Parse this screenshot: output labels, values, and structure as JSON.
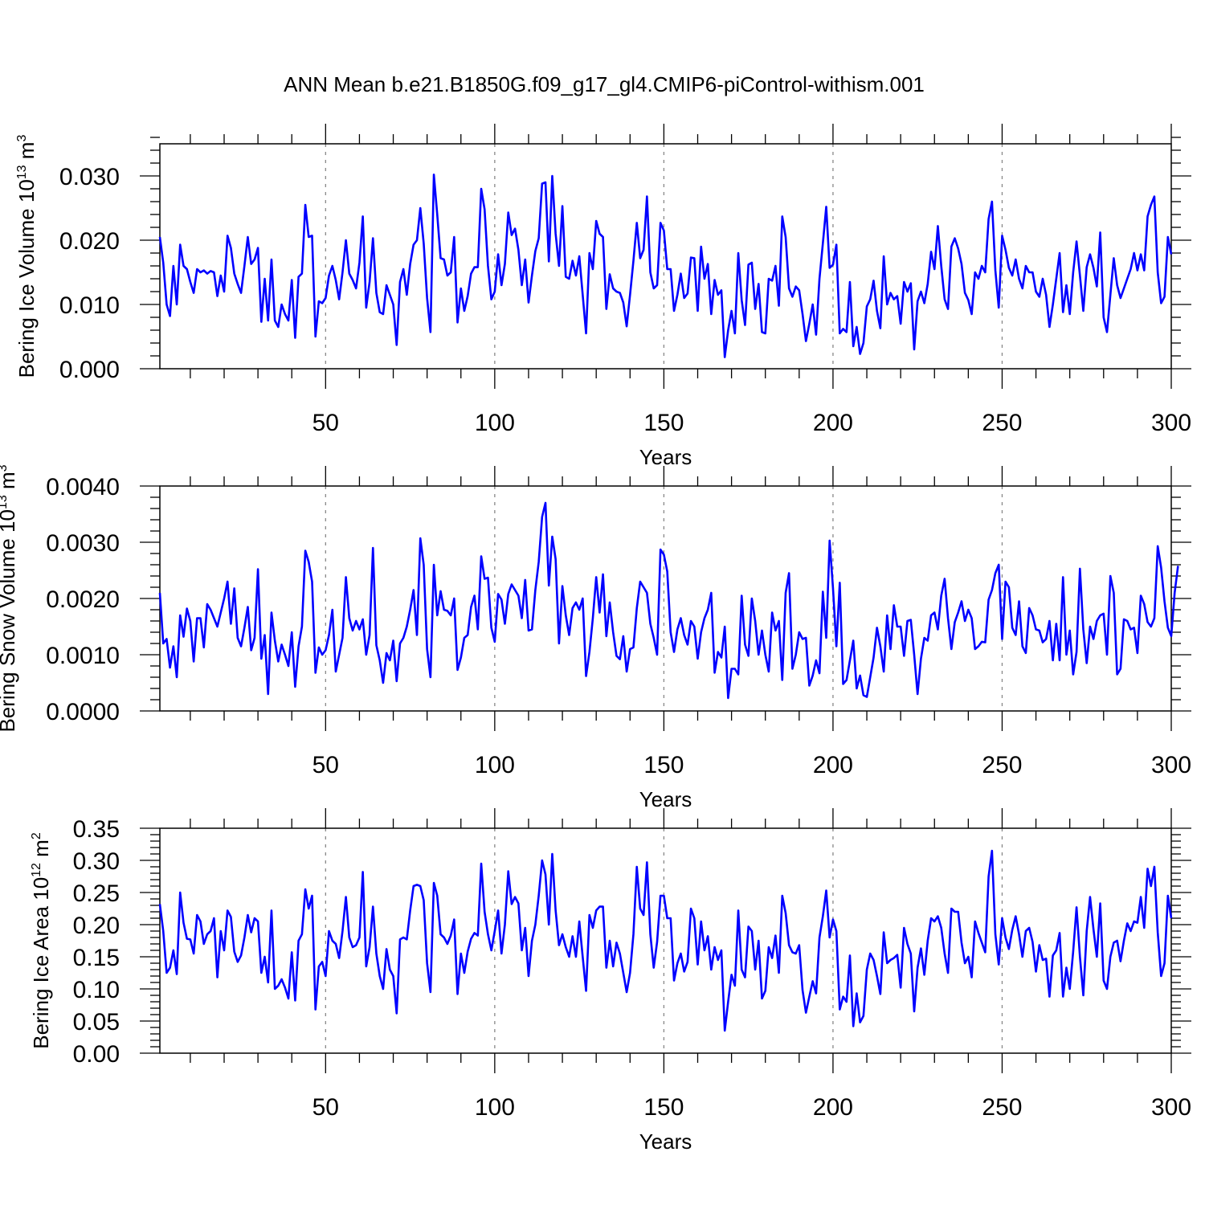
{
  "title": "ANN Mean b.e21.B1850G.f09_g17_gl4.CMIP6-piControl-withism.001",
  "chart_data": [
    {
      "type": "line",
      "id": "ice-volume",
      "ylabel": "Bering Ice Volume",
      "yunit_base": "10",
      "yunit_exp": "13",
      "yunit_tail": "m",
      "yunit_tail_exp": "3",
      "xlabel": "Years",
      "xlim": [
        1,
        300
      ],
      "ylim": [
        0,
        0.035
      ],
      "yticks": [
        0.0,
        0.01,
        0.02,
        0.03
      ],
      "ytick_labels": [
        "0.000",
        "0.010",
        "0.020",
        "0.030"
      ],
      "xticks": [
        50,
        100,
        150,
        200,
        250,
        300
      ],
      "xtick_labels": [
        "50",
        "100",
        "150",
        "200",
        "250",
        "300"
      ],
      "vgrid": [
        50,
        100,
        150,
        200,
        250
      ],
      "color": "#0000ff",
      "values": [
        0.0205,
        0.0165,
        0.01,
        0.0082,
        0.016,
        0.01,
        0.0193,
        0.016,
        0.0155,
        0.0135,
        0.0118,
        0.0155,
        0.015,
        0.0153,
        0.0148,
        0.0152,
        0.015,
        0.0113,
        0.0145,
        0.012,
        0.0207,
        0.0188,
        0.0148,
        0.0132,
        0.0118,
        0.016,
        0.0205,
        0.0163,
        0.017,
        0.0188,
        0.0073,
        0.014,
        0.0075,
        0.017,
        0.0075,
        0.0065,
        0.01,
        0.0085,
        0.0075,
        0.0138,
        0.0048,
        0.0143,
        0.0148,
        0.0255,
        0.0205,
        0.0207,
        0.005,
        0.0105,
        0.0102,
        0.011,
        0.0145,
        0.016,
        0.0138,
        0.0108,
        0.015,
        0.02,
        0.0148,
        0.0138,
        0.0125,
        0.0165,
        0.0237,
        0.0095,
        0.0135,
        0.0203,
        0.0118,
        0.0088,
        0.0085,
        0.013,
        0.0115,
        0.01,
        0.0037,
        0.0135,
        0.0155,
        0.0115,
        0.0163,
        0.0193,
        0.02,
        0.025,
        0.0195,
        0.011,
        0.0057,
        0.0302,
        0.024,
        0.0172,
        0.017,
        0.0145,
        0.015,
        0.0205,
        0.0072,
        0.0125,
        0.009,
        0.0113,
        0.0148,
        0.0158,
        0.0158,
        0.028,
        0.0248,
        0.016,
        0.0108,
        0.012,
        0.0178,
        0.013,
        0.0163,
        0.0243,
        0.0208,
        0.0218,
        0.0185,
        0.013,
        0.017,
        0.0103,
        0.0145,
        0.0183,
        0.0203,
        0.0288,
        0.029,
        0.0167,
        0.03,
        0.021,
        0.016,
        0.0253,
        0.0143,
        0.014,
        0.0168,
        0.0145,
        0.0175,
        0.0115,
        0.0055,
        0.018,
        0.0155,
        0.023,
        0.021,
        0.0205,
        0.0093,
        0.0147,
        0.0125,
        0.012,
        0.0118,
        0.0103,
        0.0066,
        0.0115,
        0.0168,
        0.0227,
        0.0172,
        0.0185,
        0.0268,
        0.015,
        0.0125,
        0.013,
        0.0227,
        0.0215,
        0.0155,
        0.0155,
        0.009,
        0.0115,
        0.0148,
        0.011,
        0.0117,
        0.0173,
        0.0172,
        0.009,
        0.019,
        0.014,
        0.0163,
        0.0085,
        0.0138,
        0.0115,
        0.0122,
        0.0018,
        0.006,
        0.009,
        0.0055,
        0.018,
        0.0107,
        0.0068,
        0.0162,
        0.0165,
        0.0093,
        0.0132,
        0.0057,
        0.0055,
        0.014,
        0.0137,
        0.016,
        0.0098,
        0.0237,
        0.0205,
        0.0125,
        0.0112,
        0.0128,
        0.0122,
        0.0085,
        0.0043,
        0.007,
        0.01,
        0.0053,
        0.014,
        0.0195,
        0.0252,
        0.0157,
        0.0162,
        0.0193,
        0.0055,
        0.0062,
        0.0057,
        0.0135,
        0.0035,
        0.0065,
        0.0023,
        0.004,
        0.0097,
        0.0108,
        0.0137,
        0.009,
        0.0063,
        0.0175,
        0.01,
        0.0118,
        0.0108,
        0.0113,
        0.007,
        0.0135,
        0.012,
        0.0133,
        0.003,
        0.0105,
        0.012,
        0.0102,
        0.0132,
        0.0182,
        0.0155,
        0.0222,
        0.016,
        0.0108,
        0.0093,
        0.019,
        0.0203,
        0.0187,
        0.0163,
        0.0118,
        0.0107,
        0.0085,
        0.015,
        0.014,
        0.016,
        0.015,
        0.0233,
        0.026,
        0.0153,
        0.0095,
        0.0207,
        0.0185,
        0.0157,
        0.0145,
        0.017,
        0.014,
        0.0125,
        0.016,
        0.015,
        0.015,
        0.012,
        0.0112,
        0.014,
        0.0115,
        0.0065,
        0.01,
        0.014,
        0.018,
        0.0088,
        0.013,
        0.0085,
        0.015,
        0.0198,
        0.0145,
        0.009,
        0.0158,
        0.0178,
        0.0157,
        0.0128,
        0.0212,
        0.008,
        0.0057,
        0.0115,
        0.0172,
        0.013,
        0.011,
        0.0125,
        0.014,
        0.0155,
        0.018,
        0.0153,
        0.0178,
        0.0153,
        0.0237,
        0.0255,
        0.0268,
        0.015,
        0.0102,
        0.0112,
        0.0205,
        0.0178
      ]
    },
    {
      "type": "line",
      "id": "snow-volume",
      "ylabel": "Bering Snow Volume",
      "yunit_base": "10",
      "yunit_exp": "13",
      "yunit_tail": "m",
      "yunit_tail_exp": "3",
      "xlabel": "Years",
      "xlim": [
        1,
        300
      ],
      "ylim": [
        0,
        0.004
      ],
      "yticks": [
        0.0,
        0.001,
        0.002,
        0.003,
        0.004
      ],
      "ytick_labels": [
        "0.0000",
        "0.0010",
        "0.0020",
        "0.0030",
        "0.0040"
      ],
      "xticks": [
        50,
        100,
        150,
        200,
        250,
        300
      ],
      "xtick_labels": [
        "50",
        "100",
        "150",
        "200",
        "250",
        "300"
      ],
      "vgrid": [
        50,
        100,
        150,
        200,
        250
      ],
      "color": "#0000ff",
      "values": [
        0.0021,
        0.0012,
        0.00128,
        0.00077,
        0.00115,
        0.0006,
        0.0017,
        0.00132,
        0.00182,
        0.0016,
        0.00088,
        0.00165,
        0.00165,
        0.00113,
        0.0019,
        0.0018,
        0.00165,
        0.0015,
        0.00175,
        0.002,
        0.0023,
        0.00155,
        0.00218,
        0.0013,
        0.00115,
        0.00148,
        0.00185,
        0.00108,
        0.0013,
        0.00252,
        0.00093,
        0.00135,
        0.0003,
        0.00175,
        0.00125,
        0.00088,
        0.00118,
        0.001,
        0.0008,
        0.0014,
        0.00043,
        0.00115,
        0.0015,
        0.00285,
        0.00265,
        0.0023,
        0.00068,
        0.00113,
        0.001,
        0.00108,
        0.00135,
        0.0018,
        0.0007,
        0.001,
        0.0013,
        0.00238,
        0.00165,
        0.00143,
        0.0016,
        0.00145,
        0.00163,
        0.001,
        0.00135,
        0.0029,
        0.00117,
        0.0009,
        0.0005,
        0.00103,
        0.0009,
        0.00125,
        0.00053,
        0.0012,
        0.0013,
        0.0015,
        0.0018,
        0.00215,
        0.00135,
        0.00307,
        0.0026,
        0.0011,
        0.0006,
        0.0026,
        0.0017,
        0.00213,
        0.0018,
        0.00178,
        0.0017,
        0.002,
        0.00073,
        0.00095,
        0.0013,
        0.00135,
        0.00185,
        0.00205,
        0.00145,
        0.00275,
        0.00235,
        0.00237,
        0.00148,
        0.00123,
        0.00208,
        0.00198,
        0.00155,
        0.00208,
        0.00225,
        0.00215,
        0.00205,
        0.00165,
        0.00233,
        0.00143,
        0.00145,
        0.00215,
        0.00265,
        0.00345,
        0.0037,
        0.00223,
        0.0031,
        0.0027,
        0.0012,
        0.00222,
        0.0017,
        0.00135,
        0.00183,
        0.00193,
        0.0018,
        0.002,
        0.00062,
        0.00105,
        0.00165,
        0.00238,
        0.00175,
        0.00243,
        0.00133,
        0.00193,
        0.0014,
        0.00098,
        0.00092,
        0.00133,
        0.0007,
        0.0011,
        0.00113,
        0.00183,
        0.0023,
        0.0022,
        0.0021,
        0.00155,
        0.0013,
        0.001,
        0.00287,
        0.00278,
        0.00248,
        0.0014,
        0.00105,
        0.00145,
        0.00165,
        0.00135,
        0.00118,
        0.0016,
        0.0015,
        0.00093,
        0.0014,
        0.00165,
        0.0018,
        0.0021,
        0.00068,
        0.00105,
        0.00095,
        0.0015,
        0.00023,
        0.00075,
        0.00075,
        0.00065,
        0.00205,
        0.00118,
        0.00098,
        0.002,
        0.0016,
        0.001,
        0.00143,
        0.001,
        0.0007,
        0.00175,
        0.00143,
        0.0016,
        0.00055,
        0.0021,
        0.00245,
        0.00075,
        0.001,
        0.0014,
        0.00128,
        0.0013,
        0.00045,
        0.00063,
        0.0009,
        0.00067,
        0.00212,
        0.0013,
        0.00303,
        0.00218,
        0.00115,
        0.00228,
        0.00048,
        0.00055,
        0.0009,
        0.00125,
        0.0004,
        0.00063,
        0.00028,
        0.00025,
        0.0006,
        0.00095,
        0.00148,
        0.00115,
        0.0007,
        0.0017,
        0.0011,
        0.00188,
        0.0015,
        0.0015,
        0.00098,
        0.0016,
        0.00162,
        0.001,
        0.0003,
        0.00093,
        0.0013,
        0.00125,
        0.0017,
        0.00175,
        0.00145,
        0.00205,
        0.00235,
        0.00165,
        0.0011,
        0.00158,
        0.00175,
        0.00195,
        0.0016,
        0.0018,
        0.00165,
        0.0011,
        0.00115,
        0.00123,
        0.00122,
        0.00198,
        0.00215,
        0.00245,
        0.0026,
        0.00128,
        0.0023,
        0.0022,
        0.00148,
        0.00135,
        0.00195,
        0.00115,
        0.00103,
        0.00183,
        0.0017,
        0.00145,
        0.00143,
        0.00122,
        0.00128,
        0.0016,
        0.0009,
        0.00155,
        0.0009,
        0.00238,
        0.001,
        0.00143,
        0.00065,
        0.00105,
        0.00253,
        0.00145,
        0.00085,
        0.0015,
        0.00128,
        0.0016,
        0.0017,
        0.00173,
        0.001,
        0.0024,
        0.0021,
        0.00065,
        0.00075,
        0.00163,
        0.0016,
        0.00145,
        0.00148,
        0.00103,
        0.00205,
        0.0019,
        0.00158,
        0.0015,
        0.00165,
        0.00293,
        0.00255,
        0.00195,
        0.00148,
        0.00133,
        0.0021,
        0.00258
      ]
    },
    {
      "type": "line",
      "id": "ice-area",
      "ylabel": "Bering Ice Area",
      "yunit_base": "10",
      "yunit_exp": "12",
      "yunit_tail": "m",
      "yunit_tail_exp": "2",
      "xlabel": "Years",
      "xlim": [
        1,
        300
      ],
      "ylim": [
        0,
        0.35
      ],
      "yticks": [
        0.0,
        0.05,
        0.1,
        0.15,
        0.2,
        0.25,
        0.3,
        0.35
      ],
      "ytick_labels": [
        "0.00",
        "0.05",
        "0.10",
        "0.15",
        "0.20",
        "0.25",
        "0.30",
        "0.35"
      ],
      "xticks": [
        50,
        100,
        150,
        200,
        250,
        300
      ],
      "xtick_labels": [
        "50",
        "100",
        "150",
        "200",
        "250",
        "300"
      ],
      "vgrid": [
        50,
        100,
        150,
        200,
        250
      ],
      "color": "#0000ff",
      "values": [
        0.232,
        0.19,
        0.125,
        0.133,
        0.16,
        0.123,
        0.25,
        0.203,
        0.178,
        0.177,
        0.155,
        0.215,
        0.205,
        0.17,
        0.185,
        0.19,
        0.21,
        0.118,
        0.19,
        0.16,
        0.222,
        0.212,
        0.158,
        0.142,
        0.152,
        0.18,
        0.215,
        0.188,
        0.21,
        0.205,
        0.125,
        0.15,
        0.11,
        0.222,
        0.1,
        0.105,
        0.115,
        0.102,
        0.085,
        0.157,
        0.082,
        0.175,
        0.185,
        0.255,
        0.225,
        0.245,
        0.068,
        0.135,
        0.142,
        0.12,
        0.19,
        0.175,
        0.17,
        0.148,
        0.19,
        0.243,
        0.18,
        0.165,
        0.168,
        0.18,
        0.282,
        0.135,
        0.165,
        0.228,
        0.155,
        0.12,
        0.1,
        0.162,
        0.13,
        0.12,
        0.062,
        0.177,
        0.18,
        0.177,
        0.222,
        0.26,
        0.262,
        0.26,
        0.238,
        0.14,
        0.095,
        0.265,
        0.245,
        0.185,
        0.18,
        0.17,
        0.183,
        0.208,
        0.092,
        0.155,
        0.125,
        0.158,
        0.178,
        0.187,
        0.183,
        0.295,
        0.22,
        0.185,
        0.16,
        0.19,
        0.222,
        0.155,
        0.2,
        0.283,
        0.232,
        0.243,
        0.233,
        0.16,
        0.195,
        0.12,
        0.175,
        0.2,
        0.245,
        0.3,
        0.278,
        0.2,
        0.31,
        0.222,
        0.168,
        0.185,
        0.165,
        0.15,
        0.182,
        0.15,
        0.205,
        0.15,
        0.097,
        0.215,
        0.195,
        0.222,
        0.228,
        0.228,
        0.133,
        0.175,
        0.135,
        0.172,
        0.155,
        0.125,
        0.095,
        0.125,
        0.185,
        0.29,
        0.225,
        0.215,
        0.297,
        0.185,
        0.133,
        0.173,
        0.245,
        0.245,
        0.21,
        0.21,
        0.113,
        0.14,
        0.155,
        0.127,
        0.142,
        0.225,
        0.21,
        0.138,
        0.205,
        0.16,
        0.182,
        0.13,
        0.165,
        0.145,
        0.16,
        0.035,
        0.08,
        0.122,
        0.105,
        0.222,
        0.13,
        0.118,
        0.197,
        0.19,
        0.13,
        0.175,
        0.085,
        0.097,
        0.165,
        0.148,
        0.183,
        0.125,
        0.245,
        0.218,
        0.168,
        0.157,
        0.155,
        0.168,
        0.098,
        0.063,
        0.088,
        0.112,
        0.093,
        0.18,
        0.213,
        0.253,
        0.18,
        0.208,
        0.19,
        0.068,
        0.088,
        0.08,
        0.152,
        0.042,
        0.093,
        0.048,
        0.058,
        0.13,
        0.155,
        0.145,
        0.12,
        0.092,
        0.188,
        0.14,
        0.145,
        0.148,
        0.153,
        0.102,
        0.195,
        0.17,
        0.155,
        0.065,
        0.133,
        0.163,
        0.122,
        0.175,
        0.21,
        0.205,
        0.213,
        0.195,
        0.155,
        0.125,
        0.225,
        0.22,
        0.22,
        0.172,
        0.14,
        0.15,
        0.118,
        0.205,
        0.187,
        0.172,
        0.157,
        0.275,
        0.315,
        0.185,
        0.138,
        0.21,
        0.18,
        0.162,
        0.192,
        0.213,
        0.185,
        0.15,
        0.19,
        0.195,
        0.173,
        0.127,
        0.168,
        0.145,
        0.147,
        0.088,
        0.152,
        0.16,
        0.187,
        0.088,
        0.133,
        0.1,
        0.158,
        0.227,
        0.15,
        0.09,
        0.19,
        0.243,
        0.193,
        0.15,
        0.233,
        0.113,
        0.1,
        0.15,
        0.172,
        0.175,
        0.143,
        0.175,
        0.202,
        0.19,
        0.205,
        0.203,
        0.243,
        0.195,
        0.287,
        0.26,
        0.29,
        0.188,
        0.12,
        0.14,
        0.245,
        0.21
      ]
    }
  ]
}
